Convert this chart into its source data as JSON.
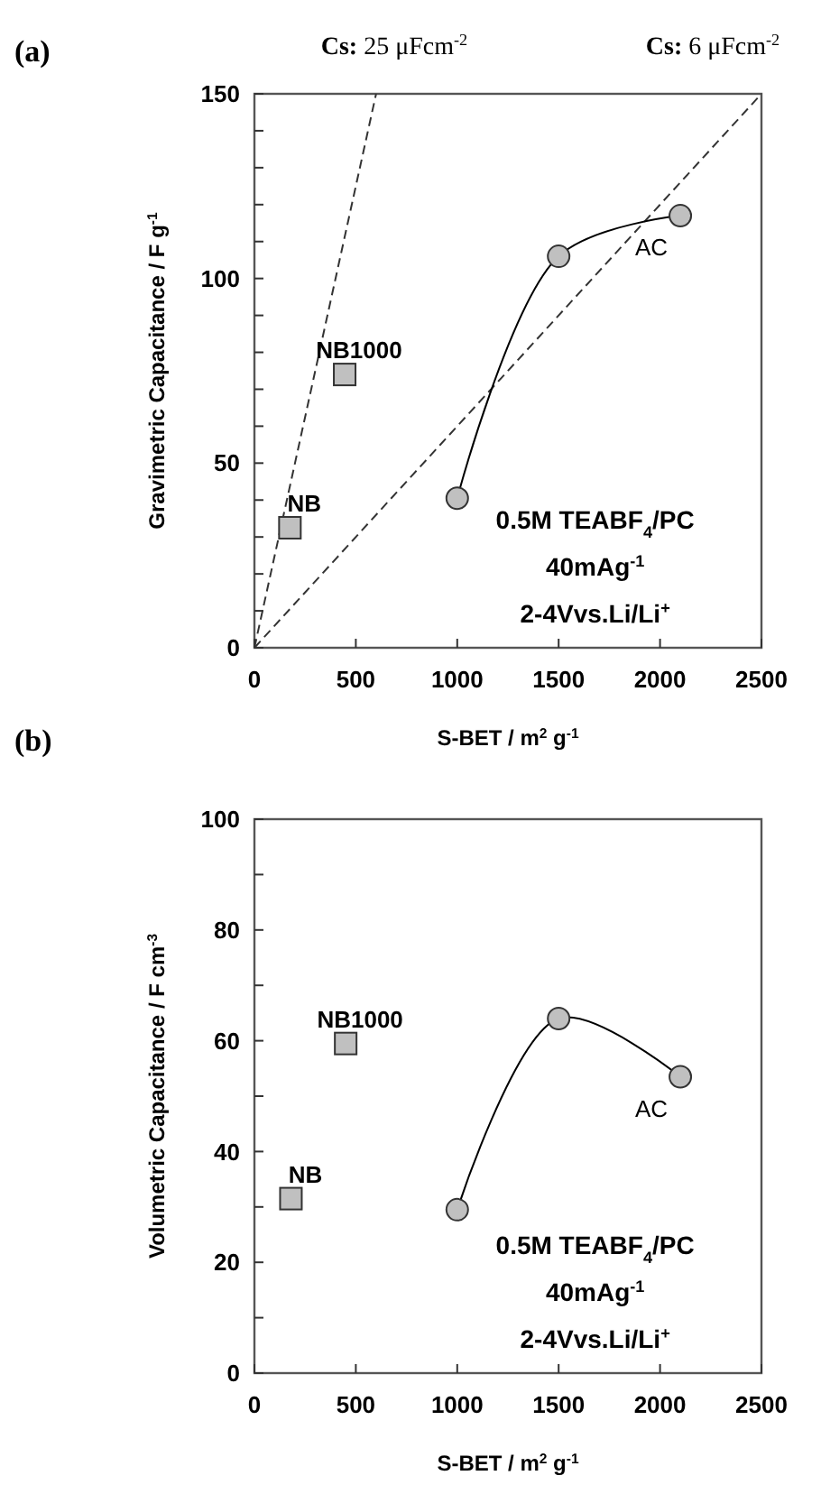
{
  "chart_data": [
    {
      "type": "scatter",
      "title": "(a)",
      "xlabel": "S-BET / m$^{2}$ g$^{-1}$",
      "ylabel": "Gravimetric Capacitance / F g$^{-1}$",
      "xlim": [
        0,
        2500
      ],
      "xticks": [
        0,
        500,
        1000,
        1500,
        2000,
        2500
      ],
      "ylim": [
        0,
        150
      ],
      "yticks": [
        0,
        {
          "value": 10,
          "label": null
        },
        {
          "value": 20,
          "label": null
        },
        {
          "value": 30,
          "label": null
        },
        {
          "value": 40,
          "label": null
        },
        50,
        {
          "value": 60,
          "label": null
        },
        {
          "value": 70,
          "label": null
        },
        {
          "value": 80,
          "label": null
        },
        {
          "value": 90,
          "label": null
        },
        100,
        {
          "value": 110,
          "label": null
        },
        {
          "value": 120,
          "label": null
        },
        {
          "value": 130,
          "label": null
        },
        {
          "value": 140,
          "label": null
        },
        150
      ],
      "series": [
        {
          "name": "Cs: 25 μFcm$^{-2}$",
          "type": "line",
          "color": "#333333",
          "x": [
            0,
            600
          ],
          "values": [
            0,
            150
          ],
          "marker": "none",
          "line_style": "dashed"
        },
        {
          "name": "Cs: 6 μFcm$^{-2}$",
          "type": "line",
          "color": "#333333",
          "x": [
            0,
            2500
          ],
          "values": [
            0,
            150
          ],
          "marker": "none",
          "line_style": "dashed"
        },
        {
          "name": "NB",
          "type": "scatter",
          "color": "#c0c0c0",
          "x": [
            175
          ],
          "values": [
            32.5
          ],
          "marker": "square"
        },
        {
          "name": "NB1000",
          "type": "scatter",
          "color": "#c0c0c0",
          "x": [
            445
          ],
          "values": [
            74
          ],
          "marker": "square"
        },
        {
          "name": "AC",
          "type": "line",
          "color": "#c0c0c0",
          "x": [
            1000,
            1500,
            2100
          ],
          "values": [
            40.5,
            106,
            117
          ],
          "marker": "circle",
          "line_style": "solid"
        }
      ],
      "annotations": [
        "0.5M TEABF$_{4}$/PC",
        "40mAg$^{-1}$",
        "2-4Vvs.Li/Li$^{+}$"
      ]
    },
    {
      "type": "scatter",
      "title": "(b)",
      "xlabel": "S-BET / m$^{2}$ g$^{-1}$",
      "ylabel": "Volumetric Capacitance / F cm$^{-3}$",
      "xlim": [
        0,
        2500
      ],
      "xticks": [
        0,
        500,
        1000,
        1500,
        2000,
        2500
      ],
      "ylim": [
        0,
        100
      ],
      "yticks": [
        0,
        {
          "value": 10,
          "label": null
        },
        20,
        {
          "value": 30,
          "label": null
        },
        40,
        {
          "value": 50,
          "label": null
        },
        60,
        {
          "value": 70,
          "label": null
        },
        80,
        {
          "value": 90,
          "label": null
        },
        100
      ],
      "series": [
        {
          "name": "NB",
          "type": "scatter",
          "color": "#c0c0c0",
          "x": [
            180
          ],
          "values": [
            31.5
          ],
          "marker": "square"
        },
        {
          "name": "NB1000",
          "type": "scatter",
          "color": "#c0c0c0",
          "x": [
            450
          ],
          "values": [
            59.5
          ],
          "marker": "square"
        },
        {
          "name": "AC",
          "type": "line",
          "color": "#c0c0c0",
          "x": [
            1000,
            1500,
            2100
          ],
          "values": [
            29.5,
            64,
            53.5
          ],
          "marker": "circle",
          "line_style": "solid"
        }
      ],
      "annotations": [
        "0.5M TEABF$_{4}$/PC",
        "40mAg$^{-1}$",
        "2-4Vvs.Li/Li$^{+}$"
      ]
    }
  ]
}
